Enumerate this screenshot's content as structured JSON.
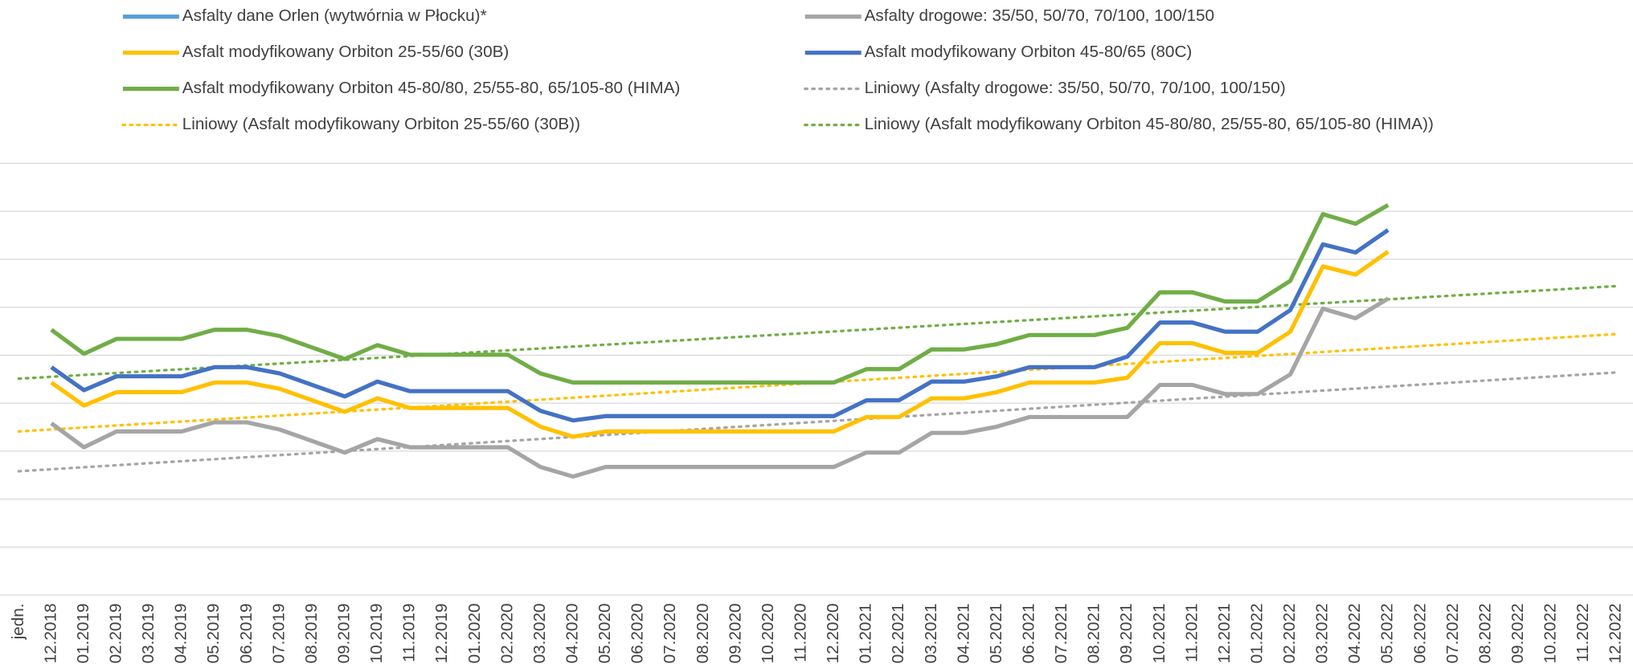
{
  "chart_data": {
    "type": "line",
    "categories": [
      "jedn.",
      "12.2018",
      "01.2019",
      "02.2019",
      "03.2019",
      "04.2019",
      "05.2019",
      "06.2019",
      "07.2019",
      "08.2019",
      "09.2019",
      "10.2019",
      "11.2019",
      "12.2019",
      "01.2020",
      "02.2020",
      "03.2020",
      "04.2020",
      "05.2020",
      "06.2020",
      "07.2020",
      "08.2020",
      "09.2020",
      "10.2020",
      "11.2020",
      "12.2020",
      "01.2021",
      "02.2021",
      "03.2021",
      "04.2021",
      "05.2021",
      "06.2021",
      "07.2021",
      "08.2021",
      "09.2021",
      "10.2021",
      "11.2021",
      "12.2021",
      "01.2022",
      "02.2022",
      "03.2022",
      "04.2022",
      "05.2022",
      "06.2022",
      "07.2022",
      "08.2022",
      "09.2022",
      "10.2022",
      "11.2022",
      "12.2022"
    ],
    "series": [
      {
        "name": "Asfalty dane Orlen (wytwórnia w Płocku)*",
        "color": "#5b9bd5",
        "values": [
          null,
          null,
          null,
          null,
          null,
          null,
          null,
          null,
          null,
          null,
          null,
          null,
          null,
          null,
          null,
          null,
          null,
          null,
          null,
          null,
          null,
          null,
          null,
          null,
          null,
          null,
          null,
          null,
          null,
          null,
          null,
          null,
          null,
          null,
          null,
          null,
          null,
          null,
          null,
          null,
          null,
          null,
          null,
          null,
          null,
          null,
          null,
          null,
          null,
          null
        ]
      },
      {
        "name": "Asfalty drogowe: 35/50, 50/70, 70/100, 100/150",
        "color": "#a5a5a5",
        "values": [
          null,
          3.58,
          3.08,
          3.41,
          3.41,
          3.41,
          3.6,
          3.6,
          3.45,
          3.21,
          2.97,
          3.25,
          3.08,
          3.08,
          3.08,
          3.08,
          2.67,
          2.47,
          2.67,
          2.67,
          2.67,
          2.67,
          2.67,
          2.67,
          2.67,
          2.67,
          2.97,
          2.97,
          3.38,
          3.38,
          3.51,
          3.71,
          3.71,
          3.71,
          3.71,
          4.38,
          4.38,
          4.19,
          4.19,
          4.6,
          5.97,
          5.77,
          6.18,
          null,
          null,
          null,
          null,
          null,
          null,
          null
        ]
      },
      {
        "name": "Asfalt modyfikowany Orbiton 25-55/60 (30B)",
        "color": "#ffc000",
        "values": [
          null,
          4.43,
          3.95,
          4.23,
          4.23,
          4.23,
          4.43,
          4.43,
          4.3,
          4.06,
          3.82,
          4.1,
          3.9,
          3.9,
          3.9,
          3.9,
          3.51,
          3.3,
          3.41,
          3.41,
          3.41,
          3.41,
          3.41,
          3.41,
          3.41,
          3.41,
          3.71,
          3.71,
          4.1,
          4.1,
          4.23,
          4.43,
          4.43,
          4.43,
          4.53,
          5.25,
          5.25,
          5.05,
          5.05,
          5.49,
          6.85,
          6.68,
          7.16,
          null,
          null,
          null,
          null,
          null,
          null,
          null
        ]
      },
      {
        "name": "Asfalt modyfikowany Orbiton 45-80/65 (80C)",
        "color": "#4472c4",
        "values": [
          null,
          4.75,
          4.27,
          4.56,
          4.56,
          4.56,
          4.75,
          4.75,
          4.62,
          4.38,
          4.14,
          4.45,
          4.25,
          4.25,
          4.25,
          4.25,
          3.84,
          3.64,
          3.73,
          3.73,
          3.73,
          3.73,
          3.73,
          3.73,
          3.73,
          3.73,
          4.06,
          4.06,
          4.45,
          4.45,
          4.56,
          4.75,
          4.75,
          4.75,
          4.97,
          5.68,
          5.68,
          5.49,
          5.49,
          5.94,
          7.31,
          7.14,
          7.61,
          null,
          null,
          null,
          null,
          null,
          null,
          null
        ]
      },
      {
        "name": "Asfalt modyfikowany Orbiton 45-80/80, 25/55-80, 65/105-80 (HIMA)",
        "color": "#70ad47",
        "values": [
          null,
          5.53,
          5.03,
          5.34,
          5.34,
          5.34,
          5.53,
          5.53,
          5.4,
          5.16,
          4.92,
          5.21,
          5.01,
          5.01,
          5.01,
          5.01,
          4.62,
          4.43,
          4.43,
          4.43,
          4.43,
          4.43,
          4.43,
          4.43,
          4.43,
          4.43,
          4.71,
          4.71,
          5.12,
          5.12,
          5.23,
          5.42,
          5.42,
          5.42,
          5.57,
          6.31,
          6.31,
          6.12,
          6.12,
          6.55,
          7.94,
          7.74,
          8.13,
          null,
          null,
          null,
          null,
          null,
          null,
          null
        ]
      },
      {
        "name": "Liniowy (Asfalty drogowe: 35/50, 50/70, 70/100, 100/150)",
        "color": "#a5a5a5",
        "dash": "dotted",
        "trend": [
          2.58,
          4.64
        ]
      },
      {
        "name": "Liniowy (Asfalt modyfikowany Orbiton 25-55/60 (30B))",
        "color": "#ffc000",
        "dash": "dotted",
        "trend": [
          3.41,
          5.44
        ]
      },
      {
        "name": "Liniowy (Asfalt modyfikowany Orbiton 45-80/80, 25/55-80, 65/105-80 (HIMA))",
        "color": "#70ad47",
        "dash": "dotted",
        "trend": [
          4.51,
          6.44
        ]
      }
    ],
    "ylim": [
      0,
      9
    ],
    "yticks": [
      0,
      1,
      2,
      3,
      4,
      5,
      6,
      7,
      8,
      9
    ],
    "ytick_labels_visible": false,
    "grid": true,
    "legend": "top"
  }
}
